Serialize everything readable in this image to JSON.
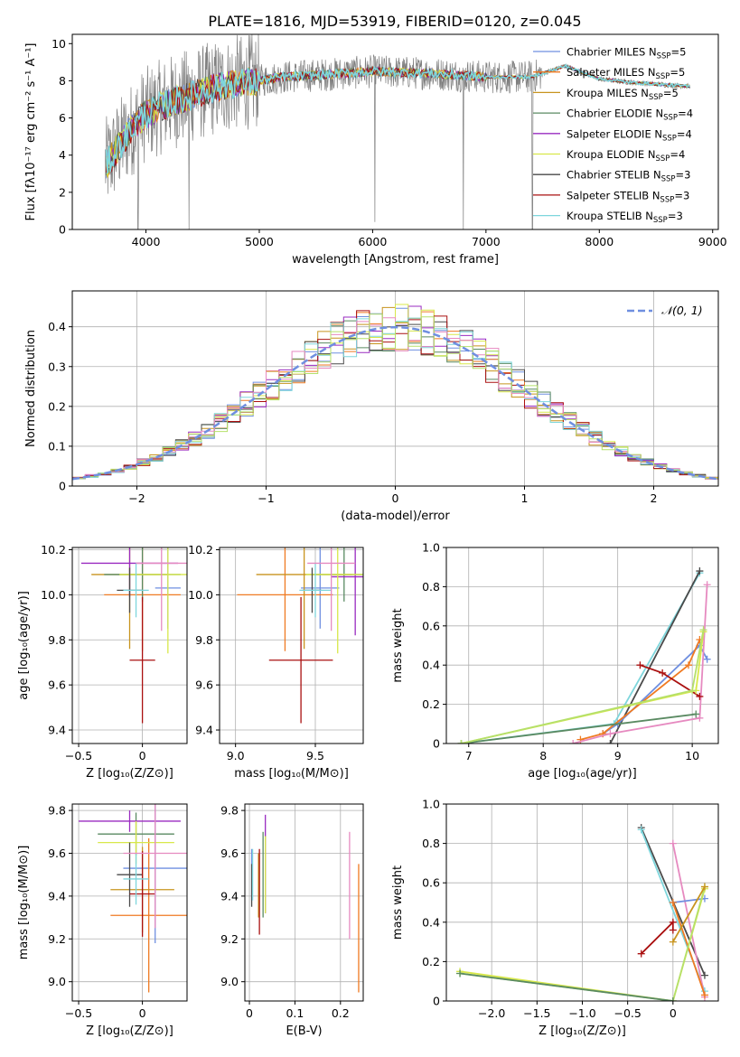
{
  "figure_title": "PLATE=1816, MJD=53919, FIBERID=0120, z=0.045",
  "colors": {
    "Chabrier MILES": "#6f8fe0",
    "Salpeter MILES": "#ef7a22",
    "Kroupa MILES": "#c8941e",
    "Chabrier ELODIE": "#5a8a62",
    "Salpeter ELODIE": "#9a2bc0",
    "Kroupa ELODIE": "#d8e84a",
    "Chabrier STELIB": "#4a4a4a",
    "Salpeter STELIB": "#aa1010",
    "Kroupa STELIB": "#7ed6dc",
    "extra1": "#e68ac0",
    "extra2": "#b5e06a",
    "data": "#808080"
  },
  "chart_data": [
    {
      "id": "spectrum",
      "type": "line",
      "xlabel": "wavelength [Angstrom, rest frame]",
      "ylabel": "Flux [fλ10⁻¹⁷ erg cm⁻² s⁻¹ A⁻¹]",
      "xlim": [
        3350,
        9050
      ],
      "ylim": [
        0,
        10.5
      ],
      "xticks": [
        4000,
        5000,
        6000,
        7000,
        8000,
        9000
      ],
      "yticks": [
        0,
        2,
        4,
        6,
        8,
        10
      ],
      "legend_position": "right",
      "legend": [
        {
          "name": "Chabrier MILES",
          "suffix": "=5"
        },
        {
          "name": "Salpeter MILES",
          "suffix": "=5"
        },
        {
          "name": "Kroupa MILES",
          "suffix": "=5"
        },
        {
          "name": "Chabrier ELODIE",
          "suffix": "=4"
        },
        {
          "name": "Salpeter ELODIE",
          "suffix": "=4"
        },
        {
          "name": "Kroupa ELODIE",
          "suffix": "=4"
        },
        {
          "name": "Chabrier STELIB",
          "suffix": "=3"
        },
        {
          "name": "Salpeter STELIB",
          "suffix": "=3"
        },
        {
          "name": "Kroupa STELIB",
          "suffix": "=3"
        }
      ],
      "continuum": {
        "x": [
          3650,
          3800,
          3900,
          4000,
          4200,
          4400,
          4600,
          4800,
          5000,
          5200,
          5500,
          6000,
          6500,
          7000,
          7400,
          7700,
          8000,
          8300,
          8800
        ],
        "y": [
          3.5,
          4.8,
          5.6,
          6.2,
          6.8,
          7.2,
          7.6,
          7.9,
          8.0,
          8.2,
          8.3,
          8.5,
          8.4,
          8.2,
          8.2,
          8.8,
          8.1,
          7.9,
          7.7
        ]
      },
      "dips": [
        {
          "x": 3930,
          "y": 0
        },
        {
          "x": 4380,
          "y": 0
        },
        {
          "x": 6020,
          "y": 0.4
        },
        {
          "x": 6800,
          "y": 0
        },
        {
          "x": 7410,
          "y": 0
        }
      ]
    },
    {
      "id": "residuals",
      "type": "histogram",
      "xlabel": "(data-model)/error",
      "ylabel": "Normed distribution",
      "xlim": [
        -2.5,
        2.5
      ],
      "ylim": [
        0,
        0.49
      ],
      "xticks": [
        -2,
        -1,
        0,
        1,
        2
      ],
      "yticks": [
        0.0,
        0.1,
        0.2,
        0.3,
        0.4
      ],
      "grid": true,
      "legend_position": "top-right",
      "legend": "𝒩(0, 1)",
      "bin_width": 0.1,
      "gaussian": {
        "mean": 0,
        "sigma": 1
      }
    },
    {
      "id": "age_vs_Z",
      "type": "errorbar",
      "xlabel": "Z [log₁₀(Z/Z⊙)]",
      "ylabel": "age  [log₁₀(age/yr)]",
      "xlim": [
        -0.55,
        0.35
      ],
      "ylim": [
        9.34,
        10.21
      ],
      "xticks": [
        -0.5,
        0.0
      ],
      "yticks": [
        9.4,
        9.6,
        9.8,
        10.0,
        10.2
      ],
      "grid": true,
      "points": [
        {
          "s": "Chabrier MILES",
          "x": 0.2,
          "xe": 0.1,
          "y": 10.03,
          "ye": 0.18
        },
        {
          "s": "Salpeter MILES",
          "x": 0.0,
          "xe": 0.3,
          "y": 10.0,
          "ye": 0.25
        },
        {
          "s": "Kroupa MILES",
          "x": -0.1,
          "xe": 0.3,
          "y": 10.09,
          "ye": 0.33
        },
        {
          "s": "Chabrier ELODIE",
          "x": 0.0,
          "xe": 0.3,
          "y": 10.09,
          "ye": 0.12
        },
        {
          "s": "Salpeter ELODIE",
          "x": -0.1,
          "xe": 0.38,
          "y": 10.14,
          "ye": 0.15
        },
        {
          "s": "Kroupa ELODIE",
          "x": 0.2,
          "xe": 0.38,
          "y": 10.09,
          "ye": 0.35
        },
        {
          "s": "Chabrier STELIB",
          "x": -0.1,
          "xe": 0.1,
          "y": 10.02,
          "ye": 0.1
        },
        {
          "s": "Salpeter STELIB",
          "x": 0.0,
          "xe": 0.1,
          "y": 9.71,
          "ye": 0.28
        },
        {
          "s": "Kroupa STELIB",
          "x": -0.05,
          "xe": 0.1,
          "y": 10.02,
          "ye": 0.12
        },
        {
          "s": "extra1",
          "x": 0.15,
          "xe": 0.2,
          "y": 10.14,
          "ye": 0.3
        }
      ]
    },
    {
      "id": "age_vs_mass",
      "type": "errorbar",
      "xlabel": "mass [log₁₀(M/M⊙)]",
      "xlim": [
        8.9,
        9.8
      ],
      "ylim": [
        9.34,
        10.21
      ],
      "xticks": [
        9.0,
        9.5
      ],
      "yticks": [
        9.4,
        9.6,
        9.8,
        10.0,
        10.2
      ],
      "grid": true,
      "points": [
        {
          "s": "Chabrier MILES",
          "x": 9.53,
          "xe": 0.12,
          "y": 10.03,
          "ye": 0.18
        },
        {
          "s": "Salpeter MILES",
          "x": 9.31,
          "xe": 0.3,
          "y": 10.0,
          "ye": 0.25
        },
        {
          "s": "Kroupa MILES",
          "x": 9.43,
          "xe": 0.3,
          "y": 10.09,
          "ye": 0.33
        },
        {
          "s": "Chabrier ELODIE",
          "x": 9.68,
          "xe": 0.2,
          "y": 10.09,
          "ye": 0.12
        },
        {
          "s": "Salpeter ELODIE",
          "x": 9.75,
          "xe": 0.15,
          "y": 10.08,
          "ye": 0.26
        },
        {
          "s": "Kroupa ELODIE",
          "x": 9.64,
          "xe": 0.2,
          "y": 10.09,
          "ye": 0.35
        },
        {
          "s": "Chabrier STELIB",
          "x": 9.48,
          "xe": 0.06,
          "y": 10.02,
          "ye": 0.1
        },
        {
          "s": "Salpeter STELIB",
          "x": 9.41,
          "xe": 0.2,
          "y": 9.71,
          "ye": 0.28
        },
        {
          "s": "Kroupa STELIB",
          "x": 9.5,
          "xe": 0.1,
          "y": 10.02,
          "ye": 0.12
        },
        {
          "s": "extra1",
          "x": 9.6,
          "xe": 0.15,
          "y": 10.14,
          "ye": 0.3
        }
      ]
    },
    {
      "id": "weight_vs_age",
      "type": "line",
      "xlabel": "age  [log₁₀(age/yr)]",
      "ylabel": "mass weight",
      "xlim": [
        6.7,
        10.35
      ],
      "ylim": [
        0,
        1.0
      ],
      "xticks": [
        7,
        8,
        9,
        10
      ],
      "yticks": [
        0.0,
        0.2,
        0.4,
        0.6,
        0.8,
        1.0
      ],
      "grid": true,
      "series": [
        {
          "s": "Kroupa STELIB",
          "x": [
            6.9,
            8.95,
            10.1
          ],
          "y": [
            0.0,
            0.1,
            0.87
          ]
        },
        {
          "s": "Chabrier STELIB",
          "x": [
            8.9,
            10.1
          ],
          "y": [
            0.0,
            0.88
          ]
        },
        {
          "s": "Chabrier MILES",
          "x": [
            8.8,
            9.0,
            10.1,
            10.2
          ],
          "y": [
            0.05,
            0.1,
            0.5,
            0.43
          ]
        },
        {
          "s": "Salpeter MILES",
          "x": [
            8.5,
            8.8,
            9.95,
            10.1
          ],
          "y": [
            0.02,
            0.05,
            0.4,
            0.53
          ]
        },
        {
          "s": "extra1",
          "x": [
            8.4,
            8.9,
            10.1,
            10.2
          ],
          "y": [
            0.0,
            0.05,
            0.13,
            0.81
          ]
        },
        {
          "s": "Salpeter STELIB",
          "x": [
            9.3,
            9.6,
            10.1
          ],
          "y": [
            0.4,
            0.36,
            0.24
          ]
        },
        {
          "s": "Kroupa ELODIE",
          "x": [
            6.9,
            10.05,
            10.15
          ],
          "y": [
            0.0,
            0.27,
            0.57
          ]
        },
        {
          "s": "Chabrier ELODIE",
          "x": [
            6.9,
            10.05
          ],
          "y": [
            0.0,
            0.15
          ]
        },
        {
          "s": "extra2",
          "x": [
            6.9,
            10.0,
            10.15
          ],
          "y": [
            0.0,
            0.27,
            0.58
          ]
        }
      ]
    },
    {
      "id": "mass_vs_Z",
      "type": "errorbar",
      "xlabel": "Z [log₁₀(Z/Z⊙)]",
      "ylabel": "mass [log₁₀(M/M⊙)]",
      "xlim": [
        -0.55,
        0.35
      ],
      "ylim": [
        8.91,
        9.83
      ],
      "xticks": [
        -0.5,
        0.0
      ],
      "yticks": [
        9.0,
        9.2,
        9.4,
        9.6,
        9.8
      ],
      "grid": true,
      "points": [
        {
          "s": "Chabrier MILES",
          "x": 0.1,
          "xe": 0.25,
          "y": 9.53,
          "ye": 0.35
        },
        {
          "s": "Salpeter MILES",
          "x": 0.05,
          "xe": 0.3,
          "y": 9.31,
          "ye": 0.36
        },
        {
          "s": "Kroupa MILES",
          "x": 0.0,
          "xe": 0.25,
          "y": 9.43,
          "ye": 0.2
        },
        {
          "s": "Chabrier ELODIE",
          "x": -0.05,
          "xe": 0.3,
          "y": 9.69,
          "ye": 0.1
        },
        {
          "s": "Salpeter ELODIE",
          "x": -0.1,
          "xe": 0.4,
          "y": 9.75,
          "ye": 0.05
        },
        {
          "s": "Kroupa ELODIE",
          "x": -0.05,
          "xe": 0.3,
          "y": 9.65,
          "ye": 0.1
        },
        {
          "s": "Chabrier STELIB",
          "x": -0.1,
          "xe": 0.1,
          "y": 9.5,
          "ye": 0.15
        },
        {
          "s": "Salpeter STELIB",
          "x": 0.0,
          "xe": 0.1,
          "y": 9.41,
          "ye": 0.2
        },
        {
          "s": "Kroupa STELIB",
          "x": -0.05,
          "xe": 0.1,
          "y": 9.48,
          "ye": 0.12
        },
        {
          "s": "extra1",
          "x": 0.1,
          "xe": 0.25,
          "y": 9.6,
          "ye": 0.35
        }
      ]
    },
    {
      "id": "mass_vs_EBV",
      "type": "errorbar",
      "xlabel": "E(B-V)",
      "xlim": [
        -0.01,
        0.25
      ],
      "ylim": [
        8.91,
        9.83
      ],
      "xticks": [
        0.0,
        0.1,
        0.2
      ],
      "yticks": [
        9.0,
        9.2,
        9.4,
        9.6,
        9.8
      ],
      "grid": true,
      "points": [
        {
          "s": "Chabrier MILES",
          "x": 0.005,
          "xe": 0,
          "y": 9.5,
          "ye": 0.12
        },
        {
          "s": "Salpeter MILES",
          "x": 0.24,
          "xe": 0,
          "y": 9.25,
          "ye": 0.3
        },
        {
          "s": "Kroupa MILES",
          "x": 0.02,
          "xe": 0,
          "y": 9.45,
          "ye": 0.15
        },
        {
          "s": "Chabrier ELODIE",
          "x": 0.03,
          "xe": 0,
          "y": 9.5,
          "ye": 0.2
        },
        {
          "s": "Salpeter ELODIE",
          "x": 0.035,
          "xe": 0,
          "y": 9.55,
          "ye": 0.23
        },
        {
          "s": "Kroupa ELODIE",
          "x": 0.035,
          "xe": 0,
          "y": 9.5,
          "ye": 0.18
        },
        {
          "s": "Chabrier STELIB",
          "x": 0.005,
          "xe": 0,
          "y": 9.45,
          "ye": 0.1
        },
        {
          "s": "Salpeter STELIB",
          "x": 0.022,
          "xe": 0,
          "y": 9.42,
          "ye": 0.2
        },
        {
          "s": "Kroupa STELIB",
          "x": 0.007,
          "xe": 0,
          "y": 9.5,
          "ye": 0.12
        },
        {
          "s": "extra1",
          "x": 0.22,
          "xe": 0,
          "y": 9.45,
          "ye": 0.25
        }
      ]
    },
    {
      "id": "weight_vs_Z",
      "type": "line",
      "xlabel": "Z [log₁₀(Z/Z⊙)]",
      "ylabel": "mass weight",
      "xlim": [
        -2.5,
        0.5
      ],
      "ylim": [
        0,
        1.0
      ],
      "xticks": [
        -2.0,
        -1.5,
        -1.0,
        -0.5,
        0.0
      ],
      "yticks": [
        0.0,
        0.2,
        0.4,
        0.6,
        0.8,
        1.0
      ],
      "grid": true,
      "series": [
        {
          "s": "Chabrier STELIB",
          "x": [
            -0.35,
            0.35
          ],
          "y": [
            0.88,
            0.13
          ]
        },
        {
          "s": "Kroupa STELIB",
          "x": [
            -0.35,
            0.35
          ],
          "y": [
            0.87,
            0.05
          ]
        },
        {
          "s": "extra1",
          "x": [
            0.0,
            0.35
          ],
          "y": [
            0.8,
            0.02
          ]
        },
        {
          "s": "Chabrier MILES",
          "x": [
            0.0,
            0.35
          ],
          "y": [
            0.5,
            0.52
          ]
        },
        {
          "s": "Salpeter MILES",
          "x": [
            0.0,
            0.35
          ],
          "y": [
            0.5,
            0.03
          ]
        },
        {
          "s": "Salpeter STELIB",
          "x": [
            -0.35,
            0.0,
            0.0
          ],
          "y": [
            0.24,
            0.4,
            0.36
          ]
        },
        {
          "s": "Kroupa ELODIE",
          "x": [
            -2.35,
            0.0,
            0.35
          ],
          "y": [
            0.15,
            0.0,
            0.57
          ]
        },
        {
          "s": "extra2",
          "x": [
            -2.35,
            0.0,
            0.35
          ],
          "y": [
            0.14,
            0.0,
            0.58
          ]
        },
        {
          "s": "Chabrier ELODIE",
          "x": [
            -2.35,
            0.0
          ],
          "y": [
            0.14,
            0.0
          ]
        },
        {
          "s": "Kroupa MILES",
          "x": [
            0.0,
            0.35
          ],
          "y": [
            0.3,
            0.58
          ]
        }
      ]
    }
  ]
}
